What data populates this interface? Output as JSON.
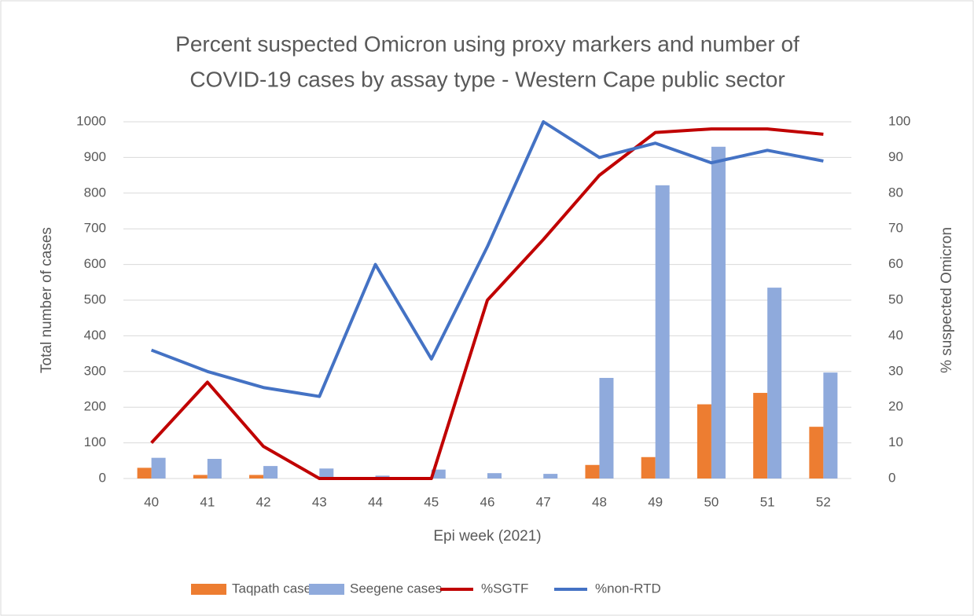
{
  "chart_data": {
    "type": "bar",
    "title": [
      "Percent suspected Omicron using proxy markers and number of",
      "COVID-19 cases by assay type - Western Cape public sector"
    ],
    "xlabel": "Epi week (2021)",
    "ylabel": "Total number of cases",
    "y2label": "% suspected Omicron",
    "categories": [
      "40",
      "41",
      "42",
      "43",
      "44",
      "45",
      "46",
      "47",
      "48",
      "49",
      "50",
      "51",
      "52"
    ],
    "ylim": [
      0,
      1000
    ],
    "yticks": [
      0,
      100,
      200,
      300,
      400,
      500,
      600,
      700,
      800,
      900,
      1000
    ],
    "y2lim": [
      0,
      100
    ],
    "y2ticks": [
      0,
      10,
      20,
      30,
      40,
      50,
      60,
      70,
      80,
      90,
      100
    ],
    "grid": true,
    "legend": "bottom",
    "series": [
      {
        "name": "Taqpath cases",
        "type": "bar",
        "color": "#ed7d31",
        "values": [
          30,
          10,
          10,
          0,
          0,
          0,
          0,
          0,
          38,
          60,
          208,
          240,
          145
        ]
      },
      {
        "name": "Seegene cases",
        "type": "bar",
        "color": "#8faadc",
        "values": [
          58,
          55,
          35,
          28,
          8,
          25,
          15,
          13,
          282,
          822,
          930,
          535,
          297
        ]
      },
      {
        "name": "%SGTF",
        "type": "line",
        "axis": "y2",
        "color": "#c00000",
        "values": [
          10,
          27,
          9,
          0,
          0,
          0,
          50,
          67,
          85,
          97,
          98,
          98,
          96.5
        ]
      },
      {
        "name": "%non-RTD",
        "type": "line",
        "axis": "y2",
        "color": "#4472c4",
        "values": [
          36,
          30,
          25.5,
          23,
          60,
          33.5,
          65,
          100,
          90,
          94,
          88.5,
          92,
          89
        ]
      }
    ]
  }
}
